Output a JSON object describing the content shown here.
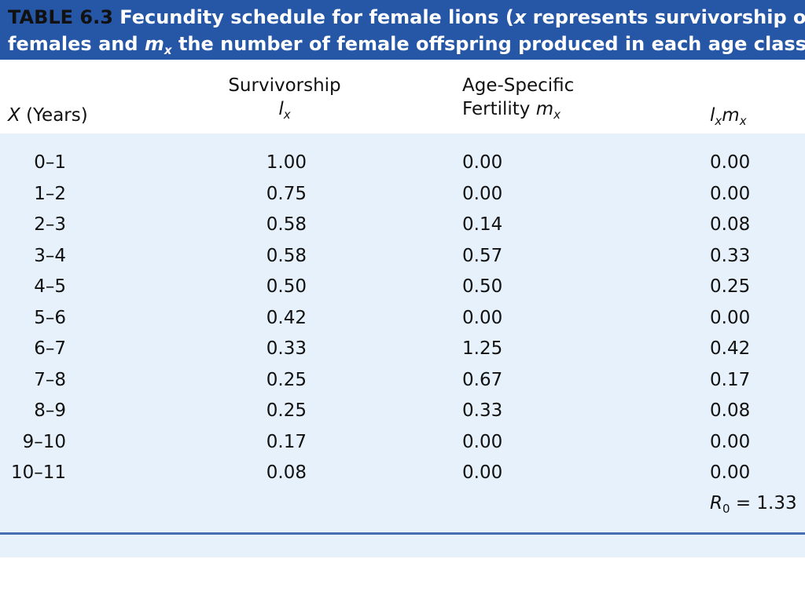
{
  "caption": {
    "label": "TABLE 6.3",
    "parts": [
      "Fecundity schedule for female lions (",
      "x",
      " represents survivorship of",
      "females and ",
      "m",
      "x",
      " the number of female offspring produced in each age class)."
    ]
  },
  "table": {
    "header": [
      [
        "X",
        " (Years)"
      ],
      [
        "Survivorship",
        "l",
        "x"
      ],
      [
        "Age-Specific",
        "Fertility ",
        "m",
        "x"
      ],
      [
        "l",
        "x",
        "m",
        "x"
      ]
    ],
    "rows": [
      [
        "0–1",
        "1.00",
        "0.00",
        "0.00"
      ],
      [
        "1–2",
        "0.75",
        "0.00",
        "0.00"
      ],
      [
        "2–3",
        "0.58",
        "0.14",
        "0.08"
      ],
      [
        "3–4",
        "0.58",
        "0.57",
        "0.33"
      ],
      [
        "4–5",
        "0.50",
        "0.50",
        "0.25"
      ],
      [
        "5–6",
        "0.42",
        "0.00",
        "0.00"
      ],
      [
        "6–7",
        "0.33",
        "1.25",
        "0.42"
      ],
      [
        "7–8",
        "0.25",
        "0.67",
        "0.17"
      ],
      [
        "8–9",
        "0.25",
        "0.33",
        "0.08"
      ],
      [
        "9–10",
        "0.17",
        "0.00",
        "0.00"
      ],
      [
        "10–11",
        "0.08",
        "0.00",
        "0.00"
      ]
    ],
    "footer": [
      "R",
      "0",
      " = 1.33"
    ]
  }
}
